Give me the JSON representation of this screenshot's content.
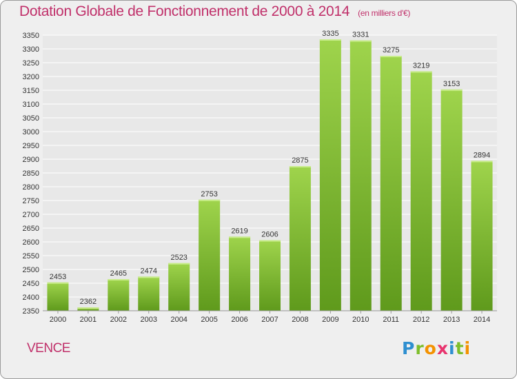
{
  "header": {
    "title": "Dotation Globale de Fonctionnement de 2000 à 2014",
    "unit": "(en milliers d'€)"
  },
  "footer": {
    "town": "VENCE",
    "logo": "Proxiti"
  },
  "colors": {
    "bar": "#8cc83c",
    "bar_dark": "#5f9a1c",
    "title": "#c0306a",
    "grid": "#ffffff",
    "background": "#efefef"
  },
  "chart_data": {
    "type": "bar",
    "title": "Dotation Globale de Fonctionnement de 2000 à 2014",
    "subtitle": "(en milliers d'€)",
    "categories": [
      "2000",
      "2001",
      "2002",
      "2003",
      "2004",
      "2005",
      "2006",
      "2007",
      "2008",
      "2009",
      "2010",
      "2011",
      "2012",
      "2013",
      "2014"
    ],
    "values": [
      2453,
      2362,
      2465,
      2474,
      2523,
      2753,
      2619,
      2606,
      2875,
      3335,
      3331,
      3275,
      3219,
      3153,
      2894
    ],
    "ylim": [
      2350,
      3350
    ],
    "ytick_step": 50,
    "grid": true,
    "legend": "none"
  }
}
